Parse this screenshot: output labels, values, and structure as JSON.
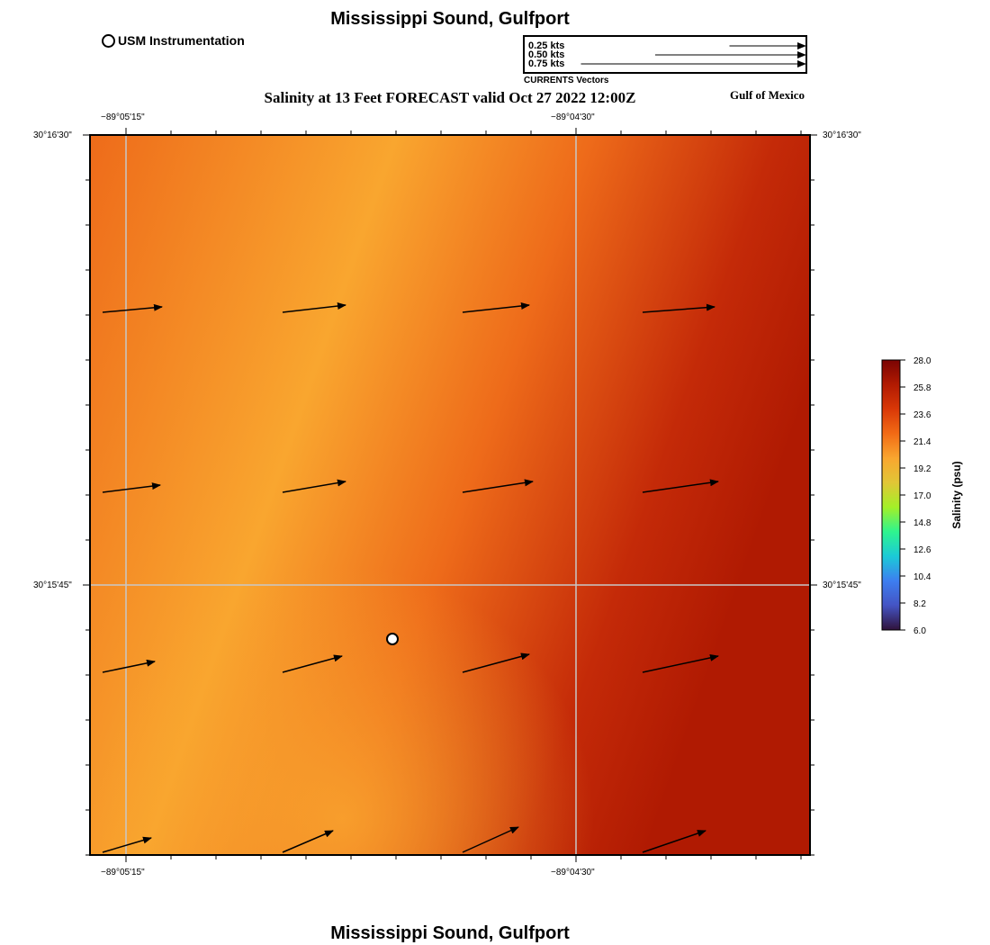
{
  "header": {
    "title": "Mississippi Sound, Gulfport",
    "subtitle": "Salinity at 13 Feet FORECAST valid Oct 27 2022 12:00Z",
    "region_label": "Gulf of Mexico"
  },
  "footer": {
    "title": "Mississippi Sound, Gulfport"
  },
  "legend": {
    "usm_label": "USM Instrumentation",
    "vector_key": {
      "caption": "CURRENTS Vectors",
      "entries": [
        {
          "label": "0.25 kts",
          "speed_kts": 0.25
        },
        {
          "label": "0.50 kts",
          "speed_kts": 0.5
        },
        {
          "label": "0.75 kts",
          "speed_kts": 0.75
        }
      ]
    }
  },
  "map": {
    "lon_labels": [
      "−89°05'15\"",
      "−89°04'30\""
    ],
    "lat_labels": [
      "30°16'30\"",
      "30°15'45\""
    ],
    "field_colors": {
      "low": "#f9a62f",
      "mid": "#ee6b1a",
      "high": "#c42a08",
      "max": "#b01a02"
    },
    "station_marker": {
      "name": "USM Instrumentation station",
      "lon_frac": 0.42,
      "lat_frac": 0.7
    },
    "vectors": [
      {
        "lon_frac": 0.01,
        "lat_frac": 0.25,
        "u": 0.66,
        "v": 0.06
      },
      {
        "lon_frac": 0.26,
        "lat_frac": 0.25,
        "u": 0.7,
        "v": 0.08
      },
      {
        "lon_frac": 0.51,
        "lat_frac": 0.25,
        "u": 0.74,
        "v": 0.08
      },
      {
        "lon_frac": 0.76,
        "lat_frac": 0.25,
        "u": 0.8,
        "v": 0.06
      },
      {
        "lon_frac": 0.01,
        "lat_frac": 0.5,
        "u": 0.64,
        "v": 0.08
      },
      {
        "lon_frac": 0.26,
        "lat_frac": 0.5,
        "u": 0.7,
        "v": 0.12
      },
      {
        "lon_frac": 0.51,
        "lat_frac": 0.5,
        "u": 0.78,
        "v": 0.12
      },
      {
        "lon_frac": 0.76,
        "lat_frac": 0.5,
        "u": 0.84,
        "v": 0.12
      },
      {
        "lon_frac": 0.01,
        "lat_frac": 0.75,
        "u": 0.58,
        "v": 0.12
      },
      {
        "lon_frac": 0.26,
        "lat_frac": 0.75,
        "u": 0.66,
        "v": 0.18
      },
      {
        "lon_frac": 0.51,
        "lat_frac": 0.75,
        "u": 0.74,
        "v": 0.2
      },
      {
        "lon_frac": 0.76,
        "lat_frac": 0.75,
        "u": 0.84,
        "v": 0.18
      },
      {
        "lon_frac": 0.01,
        "lat_frac": 1.0,
        "u": 0.54,
        "v": 0.16
      },
      {
        "lon_frac": 0.26,
        "lat_frac": 1.0,
        "u": 0.56,
        "v": 0.24
      },
      {
        "lon_frac": 0.51,
        "lat_frac": 1.0,
        "u": 0.62,
        "v": 0.28
      },
      {
        "lon_frac": 0.76,
        "lat_frac": 1.0,
        "u": 0.7,
        "v": 0.24
      }
    ]
  },
  "colorbar": {
    "title": "Salinity (psu)",
    "ticks": [
      "28.0",
      "25.8",
      "23.6",
      "21.4",
      "19.2",
      "17.0",
      "14.8",
      "12.6",
      "10.4",
      "8.2",
      "6.0"
    ],
    "colors": [
      "#7a0403",
      "#b11a02",
      "#d93807",
      "#f26b15",
      "#f9a62f",
      "#e1c636",
      "#a3f028",
      "#2ef48f",
      "#1bcad7",
      "#3d7ef0",
      "#4454c4",
      "#30123b"
    ]
  }
}
